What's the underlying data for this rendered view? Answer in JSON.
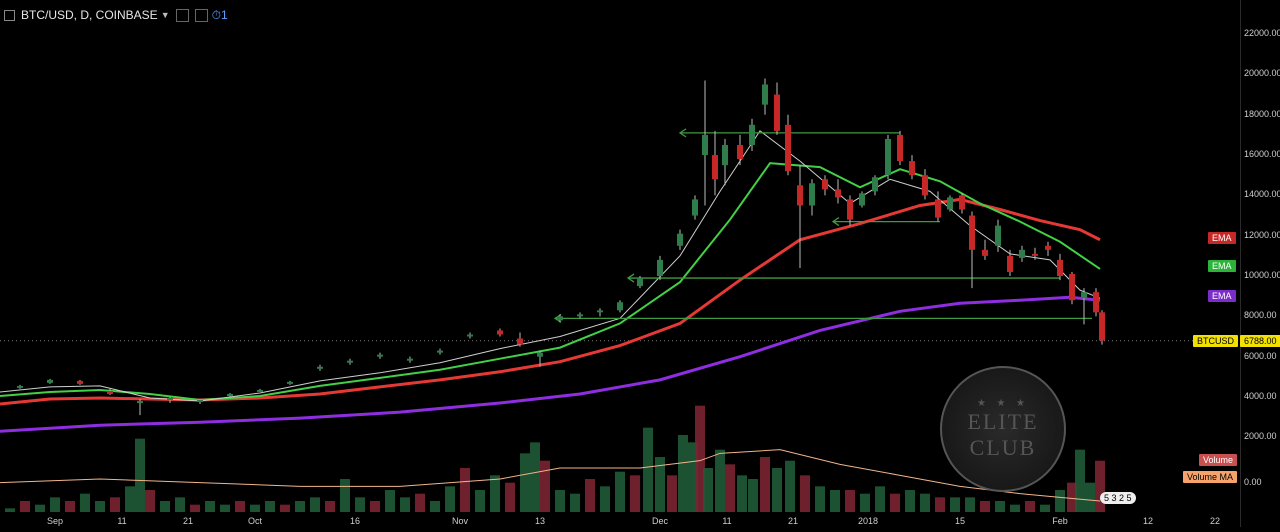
{
  "header": {
    "symbol": "BTC/USD, D, COINBASE",
    "alert_count": "1"
  },
  "watermark": {
    "line1": "ELITE",
    "line2": "CLUB"
  },
  "tags": {
    "ema_red": "EMA",
    "ema_green": "EMA",
    "ema_purple": "EMA",
    "price_symbol": "BTCUSD",
    "price_value": "6788.00",
    "volume": "Volume",
    "volume_ma": "Volume MA",
    "volume_zero": "0.00",
    "volume_badge": "5 3 2 5"
  },
  "colors": {
    "up": "#2e7d4a",
    "down": "#c62828",
    "ema_red": "#e53935",
    "ema_green": "#43d046",
    "ema_purple": "#8e2ee0",
    "ema_white": "#cfcfcf",
    "hline": "#3f9a3f"
  },
  "chart_data": {
    "type": "line",
    "title": "BTC/USD, D, COINBASE",
    "yticks": [
      "22000.00",
      "20000.00",
      "18000.00",
      "16000.00",
      "14000.00",
      "12000.00",
      "10000.00",
      "8000.00",
      "6000.00",
      "4000.00",
      "2000.00"
    ],
    "xticks": [
      "Sep",
      "11",
      "21",
      "Oct",
      "16",
      "Nov",
      "13",
      "Dec",
      "11",
      "21",
      "2018",
      "15",
      "Feb",
      "12",
      "22"
    ],
    "ylim": [
      -2200,
      22600
    ],
    "last_price": 6788,
    "series": [
      {
        "name": "EMA",
        "color": "#e53935",
        "values": [
          [
            0,
            3650
          ],
          [
            50,
            3900
          ],
          [
            100,
            3950
          ],
          [
            150,
            3900
          ],
          [
            200,
            3850
          ],
          [
            260,
            3950
          ],
          [
            320,
            4150
          ],
          [
            380,
            4500
          ],
          [
            440,
            4850
          ],
          [
            500,
            5250
          ],
          [
            560,
            5750
          ],
          [
            620,
            6550
          ],
          [
            680,
            7650
          ],
          [
            740,
            9800
          ],
          [
            800,
            11800
          ],
          [
            860,
            12600
          ],
          [
            920,
            13500
          ],
          [
            960,
            13800
          ],
          [
            1000,
            13300
          ],
          [
            1040,
            12750
          ],
          [
            1080,
            12300
          ],
          [
            1100,
            11800
          ]
        ]
      },
      {
        "name": "EMA",
        "color": "#43d046",
        "values": [
          [
            0,
            4050
          ],
          [
            50,
            4250
          ],
          [
            100,
            4350
          ],
          [
            150,
            4150
          ],
          [
            200,
            3850
          ],
          [
            260,
            4050
          ],
          [
            320,
            4550
          ],
          [
            380,
            4950
          ],
          [
            440,
            5350
          ],
          [
            500,
            5900
          ],
          [
            560,
            6450
          ],
          [
            620,
            7650
          ],
          [
            680,
            9700
          ],
          [
            730,
            12800
          ],
          [
            770,
            15600
          ],
          [
            820,
            15400
          ],
          [
            860,
            14400
          ],
          [
            900,
            15300
          ],
          [
            940,
            14700
          ],
          [
            980,
            13600
          ],
          [
            1020,
            12700
          ],
          [
            1060,
            11700
          ],
          [
            1100,
            10350
          ]
        ]
      },
      {
        "name": "EMA",
        "color": "#8e2ee0",
        "values": [
          [
            0,
            2300
          ],
          [
            100,
            2600
          ],
          [
            200,
            2750
          ],
          [
            300,
            2950
          ],
          [
            400,
            3250
          ],
          [
            500,
            3700
          ],
          [
            580,
            4150
          ],
          [
            660,
            4850
          ],
          [
            740,
            6000
          ],
          [
            820,
            7300
          ],
          [
            900,
            8250
          ],
          [
            960,
            8650
          ],
          [
            1020,
            8800
          ],
          [
            1070,
            8950
          ],
          [
            1100,
            8800
          ]
        ]
      },
      {
        "values": [
          [
            0,
            4250
          ],
          [
            50,
            4500
          ],
          [
            100,
            4550
          ],
          [
            150,
            3950
          ],
          [
            200,
            3800
          ],
          [
            260,
            4200
          ],
          [
            320,
            4800
          ],
          [
            380,
            5200
          ],
          [
            440,
            5700
          ],
          [
            500,
            6400
          ],
          [
            560,
            7000
          ],
          [
            620,
            7900
          ],
          [
            680,
            11000
          ],
          [
            720,
            14200
          ],
          [
            760,
            17200
          ],
          [
            800,
            15700
          ],
          [
            850,
            13600
          ],
          [
            890,
            14800
          ],
          [
            930,
            14200
          ],
          [
            970,
            12500
          ],
          [
            1010,
            11100
          ],
          [
            1050,
            10800
          ],
          [
            1080,
            9300
          ],
          [
            1100,
            8900
          ]
        ]
      }
    ],
    "annotations": [
      {
        "type": "hline",
        "from": 680,
        "to": 900,
        "price": 17100
      },
      {
        "type": "hline",
        "from": 833,
        "to": 940,
        "price": 12700
      },
      {
        "type": "hline",
        "from": 628,
        "to": 1060,
        "price": 9900
      },
      {
        "type": "hline",
        "from": 555,
        "to": 1092,
        "price": 7900
      }
    ],
    "candles": [
      [
        20,
        4500,
        4600,
        4400,
        4550
      ],
      [
        50,
        4700,
        4900,
        4650,
        4850
      ],
      [
        80,
        4800,
        4850,
        4600,
        4650
      ],
      [
        110,
        4300,
        4400,
        4100,
        4150
      ],
      [
        140,
        3700,
        3900,
        3100,
        3800
      ],
      [
        170,
        3900,
        4000,
        3700,
        3950
      ],
      [
        200,
        3800,
        3900,
        3650,
        3850
      ],
      [
        230,
        4100,
        4200,
        4000,
        4150
      ],
      [
        260,
        4300,
        4400,
        4250,
        4350
      ],
      [
        290,
        4700,
        4800,
        4600,
        4750
      ],
      [
        320,
        5400,
        5600,
        5300,
        5500
      ],
      [
        350,
        5700,
        5900,
        5600,
        5800
      ],
      [
        380,
        6000,
        6200,
        5900,
        6100
      ],
      [
        410,
        5800,
        6000,
        5700,
        5900
      ],
      [
        440,
        6200,
        6400,
        6100,
        6300
      ],
      [
        470,
        7000,
        7200,
        6900,
        7100
      ],
      [
        500,
        7300,
        7400,
        7000,
        7100
      ],
      [
        520,
        6900,
        7200,
        6500,
        6600
      ],
      [
        540,
        6000,
        6300,
        5500,
        6200
      ],
      [
        560,
        7800,
        8100,
        7700,
        8000
      ],
      [
        580,
        8000,
        8200,
        7900,
        8100
      ],
      [
        600,
        8200,
        8400,
        8000,
        8300
      ],
      [
        620,
        8300,
        8800,
        8200,
        8700
      ],
      [
        640,
        9500,
        10000,
        9400,
        9900
      ],
      [
        660,
        10000,
        11000,
        9800,
        10800
      ],
      [
        680,
        11500,
        12300,
        11300,
        12100
      ],
      [
        695,
        13000,
        14000,
        12800,
        13800
      ],
      [
        705,
        16000,
        19700,
        13500,
        17000
      ],
      [
        715,
        16000,
        17200,
        14000,
        14800
      ],
      [
        725,
        15500,
        16800,
        14500,
        16500
      ],
      [
        740,
        16500,
        17000,
        15500,
        15800
      ],
      [
        752,
        16500,
        17800,
        16200,
        17500
      ],
      [
        765,
        18500,
        19800,
        18000,
        19500
      ],
      [
        777,
        19000,
        19600,
        17000,
        17200
      ],
      [
        788,
        17500,
        18000,
        15000,
        15200
      ],
      [
        800,
        14500,
        15500,
        10400,
        13500
      ],
      [
        812,
        13500,
        14800,
        13000,
        14600
      ],
      [
        825,
        14800,
        15000,
        14000,
        14300
      ],
      [
        838,
        14300,
        14800,
        13600,
        13900
      ],
      [
        850,
        13800,
        14000,
        12500,
        12800
      ],
      [
        862,
        13500,
        14200,
        13400,
        14100
      ],
      [
        875,
        14200,
        15000,
        14000,
        14900
      ],
      [
        888,
        15000,
        17000,
        14800,
        16800
      ],
      [
        900,
        17000,
        17200,
        15500,
        15700
      ],
      [
        912,
        15700,
        16000,
        14800,
        15000
      ],
      [
        925,
        15000,
        15300,
        13800,
        14000
      ],
      [
        938,
        13800,
        14200,
        12700,
        12900
      ],
      [
        950,
        13300,
        14000,
        13200,
        13900
      ],
      [
        962,
        14000,
        14100,
        13100,
        13300
      ],
      [
        972,
        13000,
        13200,
        9400,
        11300
      ],
      [
        985,
        11300,
        11800,
        10800,
        11000
      ],
      [
        998,
        11500,
        12800,
        11200,
        12500
      ],
      [
        1010,
        11000,
        11300,
        10000,
        10200
      ],
      [
        1022,
        10900,
        11500,
        10700,
        11300
      ],
      [
        1035,
        11100,
        11400,
        10800,
        11000
      ],
      [
        1048,
        11500,
        11700,
        11000,
        11300
      ],
      [
        1060,
        10800,
        11100,
        9800,
        10000
      ],
      [
        1072,
        10100,
        10200,
        8600,
        8800
      ],
      [
        1084,
        8900,
        9400,
        7600,
        9200
      ],
      [
        1096,
        9200,
        9400,
        8000,
        8200
      ],
      [
        1102,
        8200,
        8300,
        6600,
        6800
      ]
    ],
    "volume": [
      [
        10,
        1
      ],
      [
        25,
        3
      ],
      [
        40,
        2
      ],
      [
        55,
        4
      ],
      [
        70,
        3
      ],
      [
        85,
        5
      ],
      [
        100,
        3
      ],
      [
        115,
        4
      ],
      [
        130,
        7
      ],
      [
        140,
        20
      ],
      [
        150,
        6
      ],
      [
        165,
        3
      ],
      [
        180,
        4
      ],
      [
        195,
        2
      ],
      [
        210,
        3
      ],
      [
        225,
        2
      ],
      [
        240,
        3
      ],
      [
        255,
        2
      ],
      [
        270,
        3
      ],
      [
        285,
        2
      ],
      [
        300,
        3
      ],
      [
        315,
        4
      ],
      [
        330,
        3
      ],
      [
        345,
        9
      ],
      [
        360,
        4
      ],
      [
        375,
        3
      ],
      [
        390,
        6
      ],
      [
        405,
        4
      ],
      [
        420,
        5
      ],
      [
        435,
        3
      ],
      [
        450,
        7
      ],
      [
        465,
        12
      ],
      [
        480,
        6
      ],
      [
        495,
        10
      ],
      [
        510,
        8
      ],
      [
        525,
        16
      ],
      [
        535,
        19
      ],
      [
        545,
        14
      ],
      [
        560,
        6
      ],
      [
        575,
        5
      ],
      [
        590,
        9
      ],
      [
        605,
        7
      ],
      [
        620,
        11
      ],
      [
        635,
        10
      ],
      [
        648,
        23
      ],
      [
        660,
        15
      ],
      [
        672,
        10
      ],
      [
        683,
        21
      ],
      [
        693,
        19
      ],
      [
        700,
        29
      ],
      [
        708,
        12
      ],
      [
        720,
        17
      ],
      [
        730,
        13
      ],
      [
        742,
        10
      ],
      [
        753,
        9
      ],
      [
        765,
        15
      ],
      [
        777,
        12
      ],
      [
        790,
        14
      ],
      [
        805,
        10
      ],
      [
        820,
        7
      ],
      [
        835,
        6
      ],
      [
        850,
        6
      ],
      [
        865,
        5
      ],
      [
        880,
        7
      ],
      [
        895,
        5
      ],
      [
        910,
        6
      ],
      [
        925,
        5
      ],
      [
        940,
        4
      ],
      [
        955,
        4
      ],
      [
        970,
        4
      ],
      [
        985,
        3
      ],
      [
        1000,
        3
      ],
      [
        1015,
        2
      ],
      [
        1030,
        3
      ],
      [
        1045,
        2
      ],
      [
        1060,
        6
      ],
      [
        1072,
        8
      ],
      [
        1080,
        17
      ],
      [
        1090,
        8
      ],
      [
        1100,
        14
      ]
    ],
    "volume_ma": [
      [
        0,
        8
      ],
      [
        100,
        9
      ],
      [
        200,
        8
      ],
      [
        300,
        7
      ],
      [
        400,
        7
      ],
      [
        500,
        9
      ],
      [
        560,
        12
      ],
      [
        640,
        12
      ],
      [
        700,
        14
      ],
      [
        720,
        16
      ],
      [
        780,
        17
      ],
      [
        840,
        13
      ],
      [
        900,
        10
      ],
      [
        960,
        7
      ],
      [
        1020,
        5
      ],
      [
        1060,
        4
      ],
      [
        1100,
        3
      ]
    ],
    "volume_max": 30
  }
}
